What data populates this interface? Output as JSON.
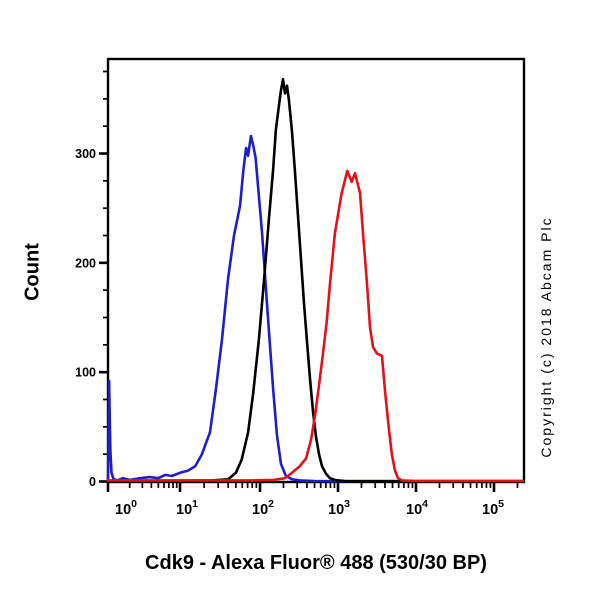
{
  "chart_data": {
    "type": "line",
    "subtype": "flow-cytometry-histogram",
    "title": "Cdk9 - Alexa Fluor® 488 (530/30 BP)",
    "xlabel": "",
    "ylabel": "Count",
    "copyright": "Copyright (c) 2018 Abcam Plc",
    "x_scale": "log",
    "x_range": [
      1,
      235000
    ],
    "y_range": [
      0,
      387
    ],
    "grid": false,
    "legend": "none",
    "y_major_ticks": [
      0,
      100,
      200,
      300
    ],
    "y_minor_step": 25,
    "x_tick_labels": [
      {
        "base": "10",
        "exp": "0"
      },
      {
        "base": "10",
        "exp": "1"
      },
      {
        "base": "10",
        "exp": "2"
      },
      {
        "base": "10",
        "exp": "3"
      },
      {
        "base": "10",
        "exp": "4"
      },
      {
        "base": "10",
        "exp": "5"
      }
    ],
    "series": [
      {
        "name": "blue-curve",
        "color": "#1e1ec8",
        "points": [
          [
            1.0,
            2
          ],
          [
            1.02,
            45
          ],
          [
            1.035,
            92
          ],
          [
            1.05,
            70
          ],
          [
            1.08,
            28
          ],
          [
            1.12,
            8
          ],
          [
            1.2,
            2
          ],
          [
            1.35,
            1
          ],
          [
            1.6,
            3
          ],
          [
            2.0,
            1.5
          ],
          [
            2.8,
            3
          ],
          [
            3.8,
            4
          ],
          [
            5.0,
            3
          ],
          [
            6.2,
            6
          ],
          [
            7.7,
            5
          ],
          [
            10,
            8
          ],
          [
            12.6,
            10
          ],
          [
            14,
            12
          ],
          [
            15.5,
            14
          ],
          [
            18.8,
            25
          ],
          [
            23.7,
            45
          ],
          [
            28.2,
            85
          ],
          [
            33.5,
            130
          ],
          [
            39.8,
            185
          ],
          [
            47.3,
            225
          ],
          [
            56.2,
            252
          ],
          [
            62,
            285
          ],
          [
            67,
            305
          ],
          [
            71,
            298
          ],
          [
            77,
            316
          ],
          [
            82,
            308
          ],
          [
            88,
            296
          ],
          [
            106,
            228
          ],
          [
            126,
            152
          ],
          [
            147,
            85
          ],
          [
            165,
            42
          ],
          [
            186,
            16
          ],
          [
            215,
            5
          ],
          [
            257,
            2
          ],
          [
            326,
            1
          ],
          [
            500,
            0.5
          ],
          [
            1000,
            0.3
          ],
          [
            235000,
            0.3
          ]
        ]
      },
      {
        "name": "black-curve",
        "color": "#000000",
        "points": [
          [
            1.0,
            0.5
          ],
          [
            3,
            0.5
          ],
          [
            10,
            0.7
          ],
          [
            25,
            1
          ],
          [
            40,
            2
          ],
          [
            50,
            8
          ],
          [
            59,
            20
          ],
          [
            71,
            45
          ],
          [
            82,
            80
          ],
          [
            97,
            130
          ],
          [
            113,
            185
          ],
          [
            130,
            240
          ],
          [
            147,
            285
          ],
          [
            160,
            322
          ],
          [
            176,
            345
          ],
          [
            186,
            358
          ],
          [
            197,
            368
          ],
          [
            209,
            355
          ],
          [
            222,
            362
          ],
          [
            235,
            349
          ],
          [
            257,
            320
          ],
          [
            281,
            283
          ],
          [
            307,
            243
          ],
          [
            335,
            203
          ],
          [
            367,
            163
          ],
          [
            400,
            128
          ],
          [
            438,
            94
          ],
          [
            478,
            64
          ],
          [
            522,
            41
          ],
          [
            570,
            25
          ],
          [
            623,
            14
          ],
          [
            702,
            7
          ],
          [
            790,
            3
          ],
          [
            942,
            1.2
          ],
          [
            1230,
            0.5
          ],
          [
            2000,
            0.3
          ],
          [
            235000,
            0.3
          ]
        ]
      },
      {
        "name": "red-curve",
        "color": "#e01418",
        "points": [
          [
            1.0,
            1
          ],
          [
            20,
            1
          ],
          [
            80,
            1
          ],
          [
            150,
            1.5
          ],
          [
            209,
            3
          ],
          [
            257,
            8
          ],
          [
            324,
            14
          ],
          [
            389,
            21
          ],
          [
            451,
            38
          ],
          [
            507,
            60
          ],
          [
            570,
            88
          ],
          [
            643,
            117
          ],
          [
            716,
            146
          ],
          [
            789,
            181
          ],
          [
            913,
            227
          ],
          [
            1115,
            264
          ],
          [
            1316,
            284
          ],
          [
            1499,
            274
          ],
          [
            1652,
            282
          ],
          [
            1914,
            264
          ],
          [
            2089,
            227
          ],
          [
            2355,
            181
          ],
          [
            2570,
            141
          ],
          [
            2812,
            123
          ],
          [
            3162,
            117
          ],
          [
            3664,
            115
          ],
          [
            4009,
            83
          ],
          [
            4508,
            47
          ],
          [
            4920,
            24
          ],
          [
            5383,
            10
          ],
          [
            5875,
            3
          ],
          [
            6622,
            1
          ],
          [
            10000,
            0.5
          ],
          [
            235000,
            0.5
          ]
        ]
      }
    ]
  }
}
